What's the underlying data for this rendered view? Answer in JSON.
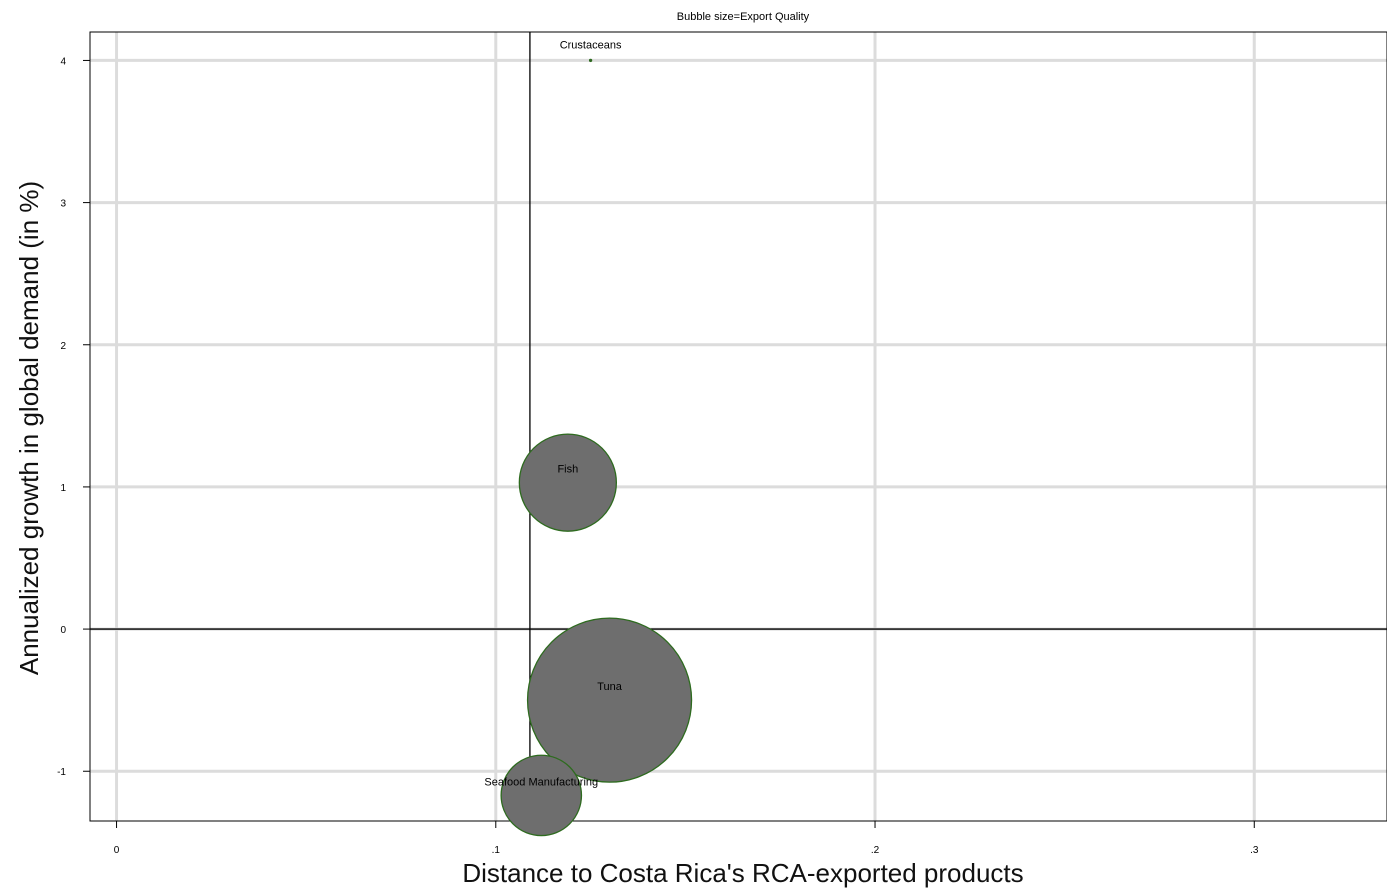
{
  "chart_data": {
    "type": "scatter",
    "title": "Bubble size=Export Quality",
    "xlabel": "Distance to Costa Rica's RCA-exported products",
    "ylabel": "Annualized growth in global demand (in %)",
    "xlim": [
      -0.007,
      0.335
    ],
    "ylim": [
      -1.35,
      4.2
    ],
    "x_ticks": [
      0,
      0.1,
      0.2,
      0.3
    ],
    "x_tick_labels": [
      "0",
      ".1",
      ".2",
      ".3"
    ],
    "y_ticks": [
      -1,
      0,
      1,
      2,
      3,
      4
    ],
    "y_tick_labels": [
      "-1",
      "0",
      "1",
      "2",
      "3",
      "4"
    ],
    "grid": true,
    "reference_lines": {
      "x": 0.109,
      "y": 0
    },
    "points": [
      {
        "label": "Crustaceans",
        "x": 0.125,
        "y": 4.0,
        "size": 0.0
      },
      {
        "label": "Fish",
        "x": 0.119,
        "y": 1.03,
        "size": 0.35
      },
      {
        "label": "Tuna",
        "x": 0.13,
        "y": -0.5,
        "size": 1.0
      },
      {
        "label": "Seafood Manufacturing",
        "x": 0.112,
        "y": -1.17,
        "size": 0.24
      }
    ],
    "colors": {
      "bubble_fill": "#6e6e6e",
      "bubble_stroke": "#2e6b1f",
      "grid": "#dcdcdc"
    }
  }
}
